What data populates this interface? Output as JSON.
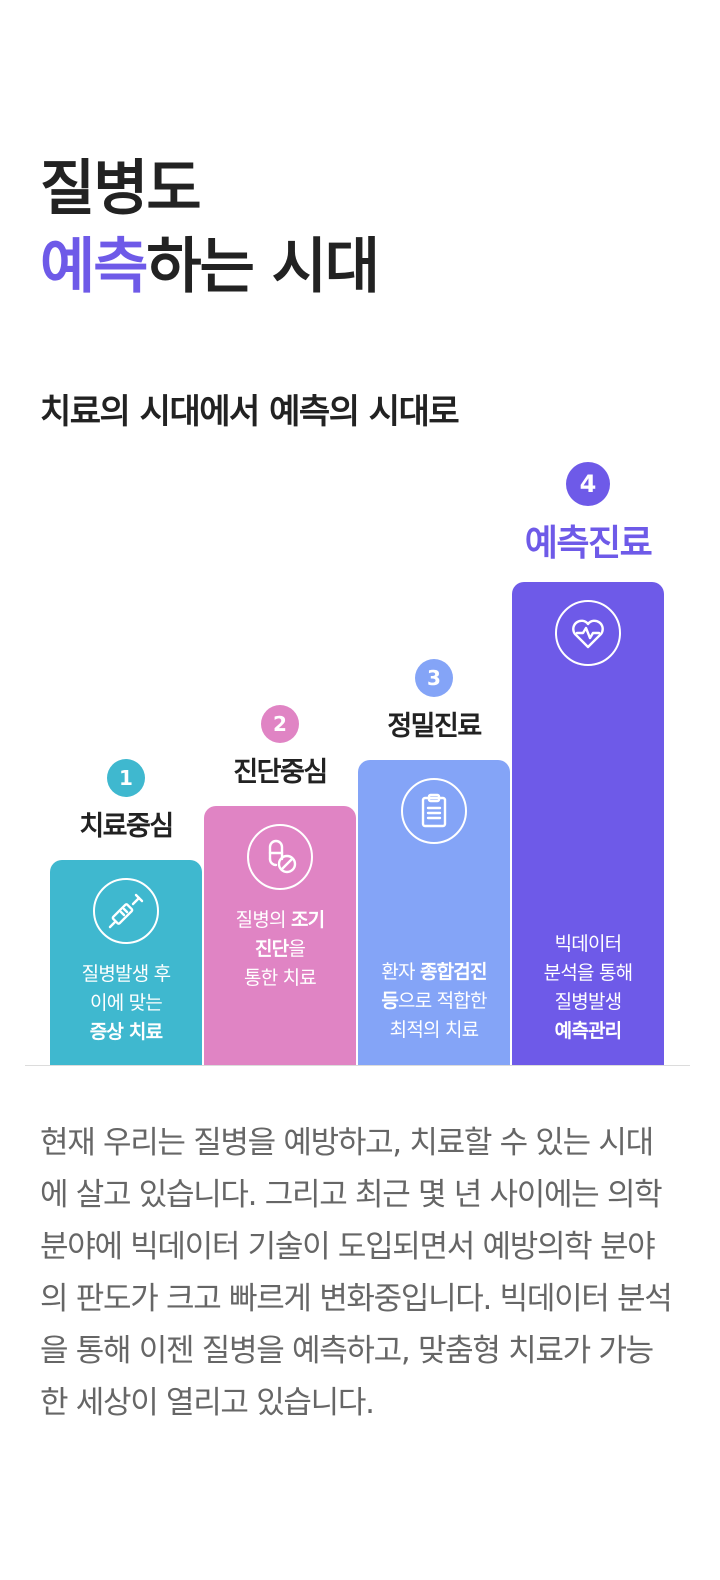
{
  "hero": {
    "line1": "질병도",
    "accent": "예측",
    "rest": "하는 시대"
  },
  "subtitle": "치료의 시대에서 예측의 시대로",
  "stages": [
    {
      "number": "1",
      "label": "치료중심",
      "icon": "syringe-icon",
      "text_plain1": "질병발생 후",
      "text_plain2": "이에 맞는",
      "text_bold": "증상 치료",
      "color": "#3fb8cf"
    },
    {
      "number": "2",
      "label": "진단중심",
      "icon": "pill-icon",
      "text_plain1": "질병의 ",
      "text_bold1": "조기",
      "text_bold2": "진단",
      "text_plain2": "을",
      "text_plain3": "통한 치료",
      "color": "#e084c4"
    },
    {
      "number": "3",
      "label": "정밀진료",
      "icon": "clipboard-icon",
      "text_plain1": "환자 ",
      "text_bold1": "종합검진",
      "text_bold2": "등",
      "text_plain2": "으로 적합한",
      "text_plain3": "최적의 치료",
      "color": "#84a4f7"
    },
    {
      "number": "4",
      "label": "예측진료",
      "icon": "heart-pulse-icon",
      "text_plain1": "빅데이터",
      "text_plain2": "분석을 통해",
      "text_plain3": "질병발생",
      "text_bold": "예측관리",
      "color": "#6e5ae8"
    }
  ],
  "description": "현재 우리는 질병을 예방하고, 치료할 수 있는 시대에 살고 있습니다. 그리고 최근 몇 년 사이에는 의학 분야에 빅데이터 기술이 도입되면서 예방의학 분야의 판도가 크고 빠르게 변화중입니다. 빅데이터 분석을 통해 이젠 질병을 예측하고, 맞춤형 치료가 가능한 세상이 열리고 있습니다."
}
